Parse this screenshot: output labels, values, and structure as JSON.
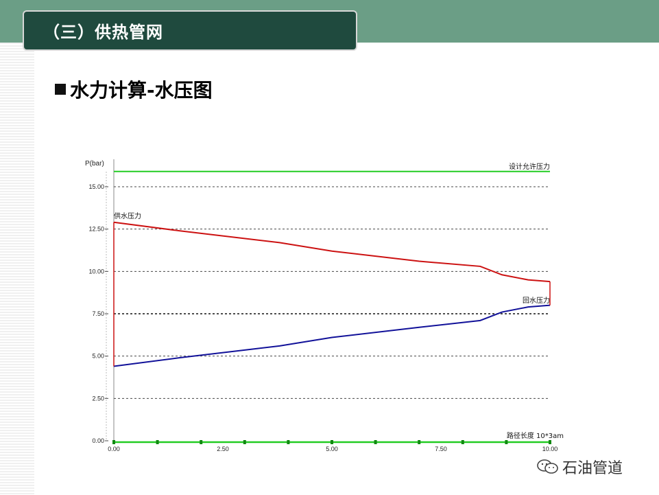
{
  "header": {
    "title": "（三）供热管网"
  },
  "section": {
    "heading": "水力计算-水压图"
  },
  "watermark": {
    "text": "石油管道"
  },
  "colors": {
    "allowable": "#22cc22",
    "supply": "#cc1111",
    "return": "#111199",
    "header_bg": "#1f4a3e",
    "band": "#6b9e86"
  },
  "chart_data": {
    "type": "line",
    "ylabel": "P(bar)",
    "xlabel": "路径长度 10*3am",
    "xlim": [
      0,
      10
    ],
    "ylim": [
      0,
      16.5
    ],
    "x_ticks": [
      "0.00",
      "2.50",
      "5.00",
      "7.50",
      "10.00"
    ],
    "y_ticks": [
      "0.00",
      "2.50",
      "5.00",
      "7.50",
      "10.00",
      "12.50",
      "15.00"
    ],
    "gridlines_y": [
      2.5,
      5.0,
      7.5,
      10.0,
      12.5,
      15.0
    ],
    "series": [
      {
        "name": "设计允许压力",
        "color": "#22cc22",
        "points": [
          [
            0,
            15.9
          ],
          [
            10,
            15.9
          ]
        ]
      },
      {
        "name": "供水压力",
        "color": "#cc1111",
        "points": [
          [
            0,
            12.9
          ],
          [
            1.5,
            12.4
          ],
          [
            3.8,
            11.7
          ],
          [
            5.0,
            11.2
          ],
          [
            7.0,
            10.6
          ],
          [
            8.4,
            10.3
          ],
          [
            8.9,
            9.8
          ],
          [
            9.5,
            9.5
          ],
          [
            10,
            9.4
          ]
        ]
      },
      {
        "name": "回水压力",
        "color": "#111199",
        "points": [
          [
            0,
            4.4
          ],
          [
            1.5,
            4.9
          ],
          [
            3.8,
            5.6
          ],
          [
            5.0,
            6.1
          ],
          [
            7.0,
            6.7
          ],
          [
            8.4,
            7.1
          ],
          [
            8.9,
            7.6
          ],
          [
            9.5,
            7.9
          ],
          [
            10,
            8.0
          ]
        ]
      }
    ]
  }
}
